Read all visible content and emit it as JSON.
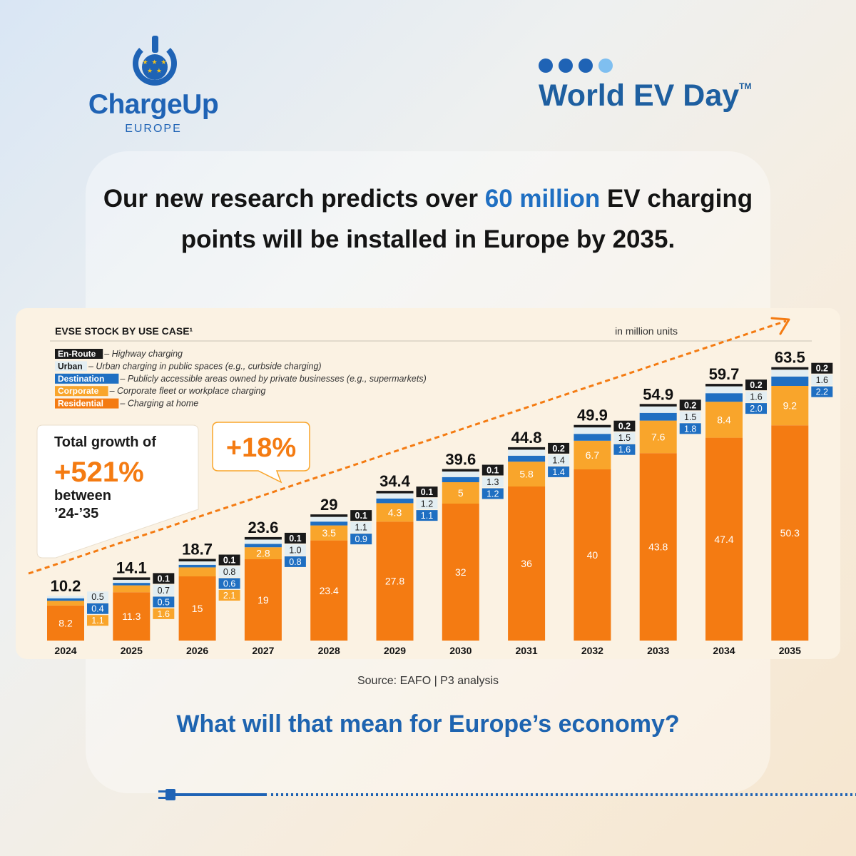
{
  "brand_left": {
    "name": "ChargeUp",
    "sub": "EUROPE",
    "stars": "★ ★ ★ ★ ★"
  },
  "brand_right": {
    "name": "World EV Day",
    "tm": "TM"
  },
  "headline": {
    "pre": "Our new research predicts over ",
    "highlight": "60 million",
    "post": " EV charging points will be installed in Europe by 2035."
  },
  "chart_data": {
    "type": "bar",
    "stacked": true,
    "title": "EVSE STOCK BY USE CASE¹",
    "unit_label": "in million units",
    "categories": [
      "2024",
      "2025",
      "2026",
      "2027",
      "2028",
      "2029",
      "2030",
      "2031",
      "2032",
      "2033",
      "2034",
      "2035"
    ],
    "totals": [
      "10.2",
      "14.1",
      "18.7",
      "23.6",
      "29",
      "34.4",
      "39.6",
      "44.8",
      "49.9",
      "54.9",
      "59.7",
      "63.5"
    ],
    "series": [
      {
        "name": "Residential",
        "desc": " – Charging at home",
        "color": "#f47b12",
        "values": [
          8.2,
          11.3,
          15,
          19,
          23.4,
          27.8,
          32,
          36,
          40,
          43.8,
          47.4,
          50.3
        ]
      },
      {
        "name": "Corporate",
        "desc": " – Corporate fleet or workplace charging",
        "color": "#f9a52b",
        "values": [
          1.1,
          1.6,
          2.1,
          2.8,
          3.5,
          4.3,
          5,
          5.8,
          6.7,
          7.6,
          8.4,
          9.2
        ]
      },
      {
        "name": "Destination",
        "desc": " – Publicly accessible areas owned by private businesses (e.g., supermarkets)",
        "color": "#1f6fc2",
        "values": [
          0.4,
          0.5,
          0.6,
          0.8,
          0.9,
          1.1,
          1.2,
          1.4,
          1.6,
          1.8,
          2.0,
          2.2
        ]
      },
      {
        "name": "Urban",
        "desc": " – Urban charging in public spaces (e.g., curbside charging)",
        "color": "#e3eef2",
        "values": [
          0.5,
          0.7,
          0.8,
          1.0,
          1.1,
          1.2,
          1.3,
          1.4,
          1.5,
          1.5,
          1.6,
          1.6
        ]
      },
      {
        "name": "En-Route",
        "desc": " – Highway charging",
        "color": "#1a1a1a",
        "values": [
          null,
          0.1,
          0.1,
          0.1,
          0.1,
          0.1,
          0.1,
          0.2,
          0.2,
          0.2,
          0.2,
          0.2
        ]
      }
    ],
    "labels": {
      "Residential": [
        "8.2",
        "11.3",
        "15",
        "19",
        "23.4",
        "27.8",
        "32",
        "36",
        "40",
        "43.8",
        "47.4",
        "50.3"
      ],
      "Corporate": [
        "1.1",
        "1.6",
        "2.1",
        "2.8",
        "3.5",
        "4.3",
        "5",
        "5.8",
        "6.7",
        "7.6",
        "8.4",
        "9.2"
      ],
      "Destination": [
        "0.4",
        "0.5",
        "0.6",
        "0.8",
        "0.9",
        "1.1",
        "1.2",
        "1.4",
        "1.6",
        "1.8",
        "2.0",
        "2.2"
      ],
      "Urban": [
        "0.5",
        "0.7",
        "0.8",
        "1.0",
        "1.1",
        "1.2",
        "1.3",
        "1.4",
        "1.5",
        "1.5",
        "1.6",
        "1.6"
      ],
      "En-Route": [
        "",
        "0.1",
        "0.1",
        "0.1",
        "0.1",
        "0.1",
        "0.1",
        "0.2",
        "0.2",
        "0.2",
        "0.2",
        "0.2"
      ]
    },
    "ylim": [
      0,
      70
    ],
    "callout_total": {
      "line1": "Total growth of",
      "big": "+521%",
      "line2": "between",
      "line3": "’24-’35"
    },
    "callout_cagr": "+18%"
  },
  "source": "Source: EAFO | P3 analysis",
  "question": "What will that mean for Europe’s economy?"
}
